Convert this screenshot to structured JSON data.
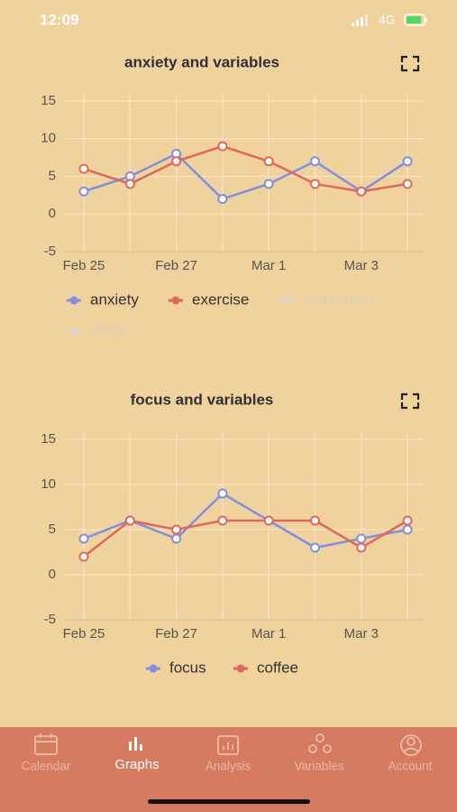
{
  "status_bar": {
    "time": "12:09",
    "network": "4G"
  },
  "chart_data": [
    {
      "type": "line",
      "title": "anxiety and variables",
      "categories": [
        "Feb 25",
        null,
        "Feb 27",
        null,
        "Mar 1",
        null,
        "Mar 3",
        null
      ],
      "series": [
        {
          "name": "anxiety",
          "color": "#7f8fe3",
          "values": [
            3,
            5,
            8,
            2,
            4,
            7,
            3,
            7
          ]
        },
        {
          "name": "exercise",
          "color": "#e0675c",
          "values": [
            6,
            4,
            7,
            9,
            7,
            4,
            3,
            4
          ]
        },
        {
          "name": "meditation",
          "color": "#dcd3c3",
          "hidden": true,
          "values": [
            null,
            null,
            null,
            null,
            null,
            null,
            null,
            null
          ]
        },
        {
          "name": "sleep",
          "color": "#dcd3c3",
          "hidden": true,
          "values": [
            null,
            null,
            null,
            null,
            null,
            null,
            null,
            null
          ]
        }
      ],
      "ylim": [
        -5,
        15
      ],
      "yticks": [
        -5,
        0,
        5,
        10,
        15
      ],
      "grid": true
    },
    {
      "type": "line",
      "title": "focus and variables",
      "categories": [
        "Feb 25",
        null,
        "Feb 27",
        null,
        "Mar 1",
        null,
        "Mar 3",
        null
      ],
      "series": [
        {
          "name": "focus",
          "color": "#7f8fe3",
          "values": [
            4,
            6,
            4,
            9,
            6,
            3,
            4,
            5
          ]
        },
        {
          "name": "coffee",
          "color": "#e0675c",
          "values": [
            2,
            6,
            5,
            6,
            6,
            6,
            3,
            6
          ]
        }
      ],
      "ylim": [
        -5,
        15
      ],
      "yticks": [
        -5,
        0,
        5,
        10,
        15
      ],
      "grid": true
    }
  ],
  "tab_bar": {
    "items": [
      "Calendar",
      "Graphs",
      "Analysis",
      "Variables",
      "Account"
    ],
    "active": 1
  }
}
